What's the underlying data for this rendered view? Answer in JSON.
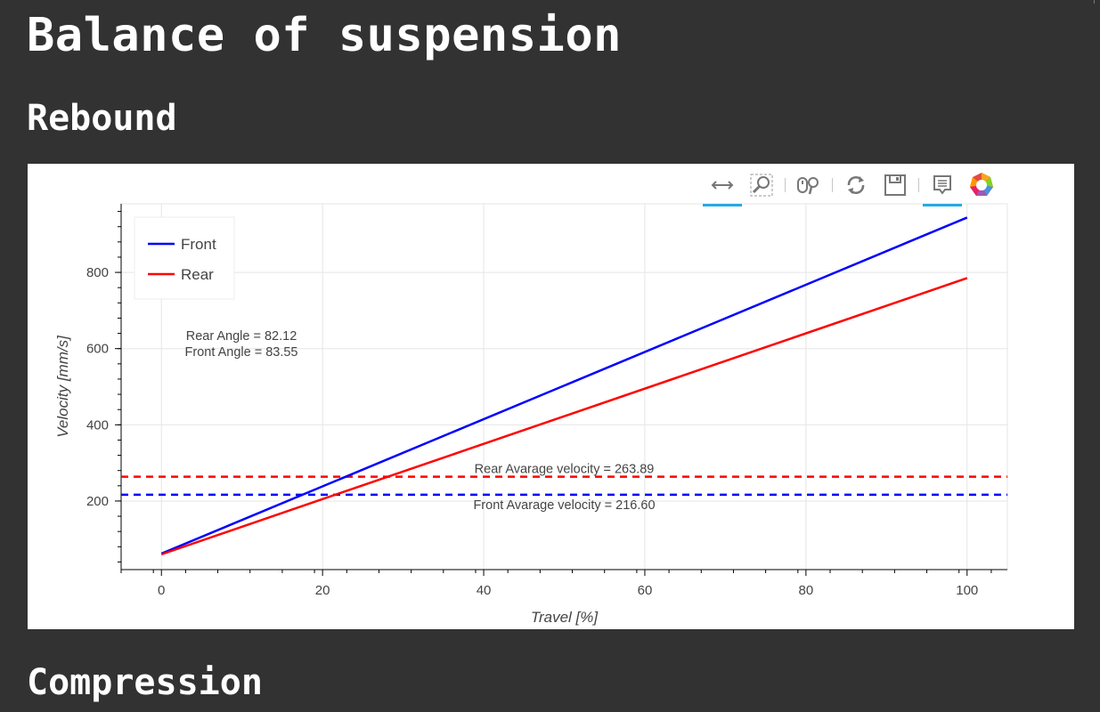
{
  "page": {
    "title": "Balance of suspension",
    "section_rebound": "Rebound",
    "section_compression": "Compression"
  },
  "toolbar": {
    "tools": [
      "pan-icon",
      "box-zoom-icon",
      "wheel-zoom-icon",
      "reset-icon",
      "save-icon",
      "hover-icon",
      "bokeh-logo"
    ]
  },
  "chart_data": {
    "type": "line",
    "xlabel": "Travel [%]",
    "ylabel": "Velocity [mm/s]",
    "xlim": [
      -5,
      105
    ],
    "ylim": [
      20,
      980
    ],
    "xticks": [
      0,
      20,
      40,
      60,
      80,
      100
    ],
    "yticks": [
      200,
      400,
      600,
      800
    ],
    "grid": true,
    "legend_position": "top-left",
    "colors": {
      "front": "#0000ff",
      "rear": "#ff0000"
    },
    "series": [
      {
        "name": "Front",
        "color": "#0000ff",
        "dash": "solid",
        "x": [
          0,
          100
        ],
        "y": [
          62,
          944
        ]
      },
      {
        "name": "Rear",
        "color": "#ff0000",
        "dash": "solid",
        "x": [
          0,
          100
        ],
        "y": [
          60,
          785
        ]
      }
    ],
    "hlines": [
      {
        "y": 263.89,
        "color": "#ff0000",
        "dash": "dashed",
        "label": "Rear Avarage velocity = 263.89"
      },
      {
        "y": 216.6,
        "color": "#0000ff",
        "dash": "dashed",
        "label": "Front Avarage velocity = 216.60"
      }
    ],
    "annotations": [
      "Rear Angle = 82.12",
      "Front Angle = 83.55"
    ]
  }
}
